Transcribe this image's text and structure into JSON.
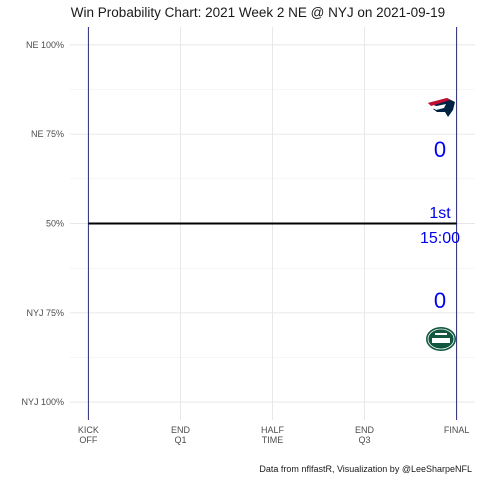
{
  "chart_data": {
    "type": "line",
    "title": "Win Probability Chart: 2021 Week 2 NE @ NYJ on 2021-09-19",
    "caption": "Data from nflfastR, Visualization by @LeeSharpeNFL",
    "xlabel": "",
    "ylabel": "",
    "x_ticks": [
      {
        "label": [
          "KICK",
          "OFF"
        ],
        "value": 0
      },
      {
        "label": [
          "END",
          "Q1"
        ],
        "value": 900
      },
      {
        "label": [
          "HALF",
          "TIME"
        ],
        "value": 1800
      },
      {
        "label": [
          "END",
          "Q3"
        ],
        "value": 2700
      },
      {
        "label": [
          "FINAL"
        ],
        "value": 3600
      }
    ],
    "xlim": [
      -180,
      3780
    ],
    "y_ticks": [
      {
        "label": "NE 100%",
        "value": 1.0
      },
      {
        "label": "NE 75%",
        "value": 0.75
      },
      {
        "label": "50%",
        "value": 0.5
      },
      {
        "label": "NYJ 75%",
        "value": 0.25
      },
      {
        "label": "NYJ 100%",
        "value": 0.0
      }
    ],
    "ylim": [
      -0.05,
      1.05
    ],
    "series": [
      {
        "x": [
          0,
          3600
        ],
        "values": [
          0.5,
          0.5
        ],
        "color": "#000000"
      }
    ],
    "vlines": [
      0,
      3600
    ],
    "vline_color": "#2b2b7a",
    "grid": true,
    "annotations": {
      "away_team": "NE",
      "home_team": "NYJ",
      "away_score": "0",
      "home_score": "0",
      "quarter": "1st",
      "clock": "15:00",
      "text_color": "#0000ee",
      "away_color": "#002244",
      "away_accent": "#c60c30",
      "home_color": "#125740"
    }
  }
}
